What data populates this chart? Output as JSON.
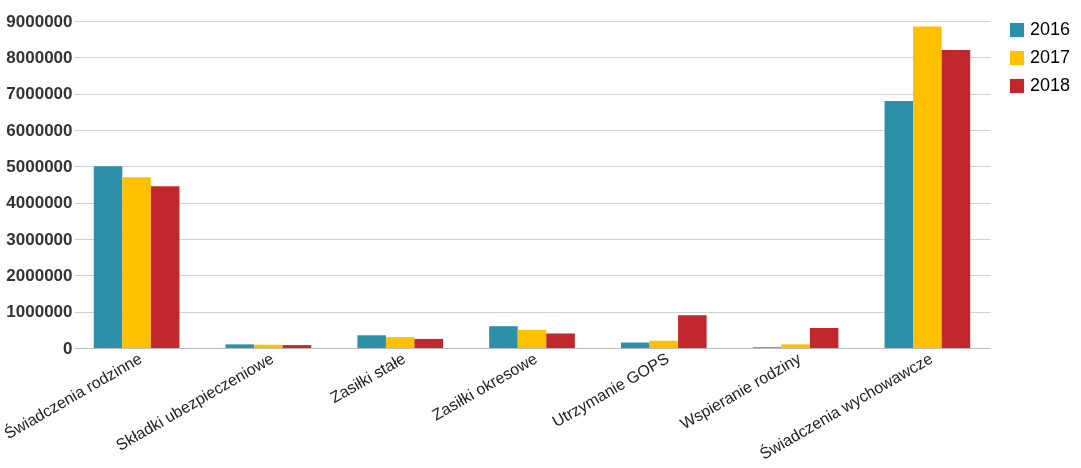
{
  "chart_data": {
    "type": "bar",
    "categories": [
      "Świadczenia rodzinne",
      "Składki ubezpieczeniowe",
      "Zasiłki stałe",
      "Zasiłki okresowe",
      "Utrzymanie GOPS",
      "Wspieranie rodziny",
      "Świadczenia wychowawcze"
    ],
    "series": [
      {
        "name": "2016",
        "color": "#2e8fa8",
        "values": [
          5000000,
          100000,
          350000,
          600000,
          150000,
          20000,
          6800000
        ]
      },
      {
        "name": "2017",
        "color": "#ffc000",
        "values": [
          4700000,
          90000,
          300000,
          500000,
          200000,
          100000,
          8850000
        ]
      },
      {
        "name": "2018",
        "color": "#c0282d",
        "values": [
          4450000,
          80000,
          250000,
          400000,
          900000,
          550000,
          8200000
        ]
      }
    ],
    "ylim": [
      0,
      9000000
    ],
    "yticks": [
      0,
      1000000,
      2000000,
      3000000,
      4000000,
      5000000,
      6000000,
      7000000,
      8000000,
      9000000
    ],
    "grid": "y",
    "legend": "right"
  }
}
